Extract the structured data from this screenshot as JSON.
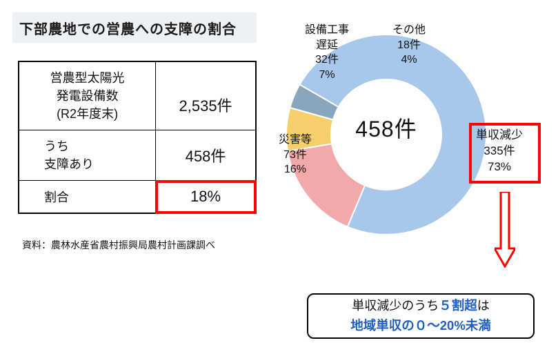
{
  "title": "下部農地での営農への支障の割合",
  "table": {
    "row1": {
      "label": "営農型太陽光\n発電設備数\n(R2年度末)",
      "value": "2,535件"
    },
    "row2": {
      "label": "うち\n支障あり",
      "value": "458件"
    },
    "row3": {
      "label": "割合",
      "value": "18%"
    },
    "highlight_cell": {
      "row": 3,
      "col": "value",
      "border_color": "#ff0000"
    }
  },
  "source": "資料：農林水産省農村振興局農村計画課調べ",
  "donut": {
    "type": "pie",
    "center_text": "458件",
    "inner_radius": 80,
    "outer_radius": 145,
    "start_angle_deg": 90,
    "direction": "clockwise",
    "background_color": "#ffffff",
    "title_fontsize": 16,
    "label_fontsize": 16,
    "slices": [
      {
        "name": "単収減少",
        "count": 335,
        "pct": 73,
        "color": "#a7c7eb",
        "label": "単収減少\n335件\n73%"
      },
      {
        "name": "災害等",
        "count": 73,
        "pct": 16,
        "color": "#f2a9ab",
        "label": "災害等\n73件\n16%"
      },
      {
        "name": "設備工事遅延",
        "count": 32,
        "pct": 7,
        "color": "#f4cf6c",
        "label": "設備工事\n遅延\n32件\n7%"
      },
      {
        "name": "その他",
        "count": 18,
        "pct": 4,
        "color": "#8aa6bd",
        "label": "その他\n18件\n4%"
      }
    ],
    "highlight_slice_index": 0,
    "highlight_border_color": "#ff0000"
  },
  "note_box": {
    "line1_prefix": "単収減少のうち",
    "line1_em": "５割超",
    "line1_suffix": "は",
    "line2_em": "地域単収の０～20%未満"
  }
}
